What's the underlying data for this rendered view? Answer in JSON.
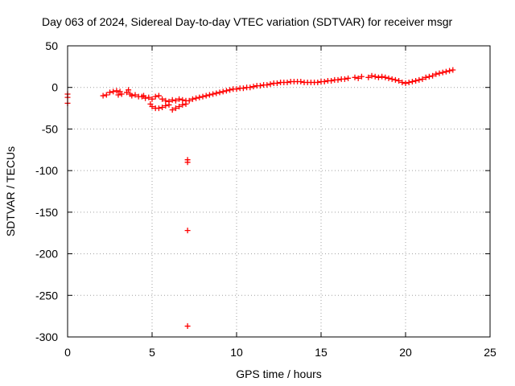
{
  "chart_data": {
    "type": "scatter",
    "title": "Day 063 of 2024, Sidereal Day-to-day VTEC variation (SDTVAR) for receiver msgr",
    "xlabel": "GPS time / hours",
    "ylabel": "SDTVAR / TECUs",
    "xlim": [
      0,
      25
    ],
    "ylim": [
      -300,
      50
    ],
    "xticks": [
      0,
      5,
      10,
      15,
      20,
      25
    ],
    "yticks": [
      50,
      0,
      -50,
      -100,
      -150,
      -200,
      -250,
      -300
    ],
    "grid": true,
    "marker": "plus",
    "color": "#ff0000",
    "series": [
      {
        "name": "SDTVAR",
        "points": [
          [
            0.0,
            -8
          ],
          [
            0.0,
            -12
          ],
          [
            0.0,
            -19
          ],
          [
            2.1,
            -10
          ],
          [
            2.3,
            -9
          ],
          [
            2.5,
            -6
          ],
          [
            2.7,
            -5
          ],
          [
            2.9,
            -4
          ],
          [
            3.0,
            -9
          ],
          [
            3.1,
            -5
          ],
          [
            3.2,
            -8
          ],
          [
            3.5,
            -6
          ],
          [
            3.6,
            -3
          ],
          [
            3.7,
            -8
          ],
          [
            3.8,
            -10
          ],
          [
            4.0,
            -9
          ],
          [
            4.2,
            -11
          ],
          [
            4.4,
            -11
          ],
          [
            4.5,
            -10
          ],
          [
            4.6,
            -13
          ],
          [
            4.8,
            -12
          ],
          [
            5.0,
            -14
          ],
          [
            5.2,
            -11
          ],
          [
            5.4,
            -10
          ],
          [
            5.6,
            -14
          ],
          [
            5.8,
            -16
          ],
          [
            6.0,
            -17
          ],
          [
            6.2,
            -15
          ],
          [
            6.4,
            -16
          ],
          [
            6.6,
            -14
          ],
          [
            6.8,
            -15
          ],
          [
            7.0,
            -16
          ],
          [
            4.9,
            -20
          ],
          [
            5.0,
            -23
          ],
          [
            5.2,
            -25
          ],
          [
            5.4,
            -25
          ],
          [
            5.6,
            -24
          ],
          [
            5.8,
            -22
          ],
          [
            6.0,
            -21
          ],
          [
            6.2,
            -27
          ],
          [
            6.4,
            -25
          ],
          [
            6.6,
            -23
          ],
          [
            6.8,
            -21
          ],
          [
            7.0,
            -20
          ],
          [
            7.2,
            -16
          ],
          [
            7.4,
            -14
          ],
          [
            7.6,
            -13
          ],
          [
            7.8,
            -12
          ],
          [
            8.0,
            -11
          ],
          [
            8.2,
            -10
          ],
          [
            8.4,
            -9
          ],
          [
            8.6,
            -8
          ],
          [
            8.8,
            -7
          ],
          [
            9.0,
            -6
          ],
          [
            9.2,
            -5
          ],
          [
            9.4,
            -4
          ],
          [
            9.6,
            -3
          ],
          [
            9.8,
            -2
          ],
          [
            10.0,
            -2
          ],
          [
            10.2,
            -1
          ],
          [
            10.4,
            -1
          ],
          [
            10.6,
            0
          ],
          [
            10.8,
            0
          ],
          [
            11.0,
            1
          ],
          [
            11.2,
            2
          ],
          [
            11.4,
            2
          ],
          [
            11.6,
            3
          ],
          [
            11.8,
            3
          ],
          [
            12.0,
            4
          ],
          [
            12.2,
            5
          ],
          [
            12.4,
            5
          ],
          [
            12.6,
            6
          ],
          [
            12.8,
            6
          ],
          [
            13.0,
            6
          ],
          [
            13.2,
            7
          ],
          [
            13.4,
            7
          ],
          [
            13.6,
            7
          ],
          [
            13.8,
            7
          ],
          [
            14.0,
            6
          ],
          [
            14.2,
            6
          ],
          [
            14.4,
            6
          ],
          [
            14.6,
            6
          ],
          [
            14.8,
            6
          ],
          [
            15.0,
            7
          ],
          [
            15.2,
            7
          ],
          [
            15.4,
            8
          ],
          [
            15.6,
            8
          ],
          [
            15.8,
            9
          ],
          [
            16.0,
            9
          ],
          [
            16.2,
            10
          ],
          [
            16.4,
            10
          ],
          [
            16.6,
            11
          ],
          [
            17.0,
            12
          ],
          [
            17.2,
            11
          ],
          [
            17.4,
            13
          ],
          [
            17.8,
            12
          ],
          [
            18.0,
            14
          ],
          [
            18.2,
            13
          ],
          [
            18.4,
            12
          ],
          [
            18.6,
            13
          ],
          [
            18.8,
            12
          ],
          [
            19.0,
            11
          ],
          [
            19.2,
            10
          ],
          [
            19.4,
            9
          ],
          [
            19.6,
            8
          ],
          [
            19.8,
            6
          ],
          [
            20.0,
            5
          ],
          [
            20.2,
            6
          ],
          [
            20.4,
            7
          ],
          [
            20.6,
            8
          ],
          [
            20.8,
            9
          ],
          [
            21.0,
            10
          ],
          [
            21.2,
            12
          ],
          [
            21.4,
            13
          ],
          [
            21.6,
            14
          ],
          [
            21.8,
            16
          ],
          [
            22.0,
            17
          ],
          [
            22.2,
            18
          ],
          [
            22.4,
            19
          ],
          [
            22.6,
            20
          ],
          [
            22.8,
            21
          ],
          [
            7.1,
            -87
          ],
          [
            7.1,
            -90
          ],
          [
            7.1,
            -172
          ],
          [
            7.1,
            -287
          ]
        ]
      }
    ]
  }
}
